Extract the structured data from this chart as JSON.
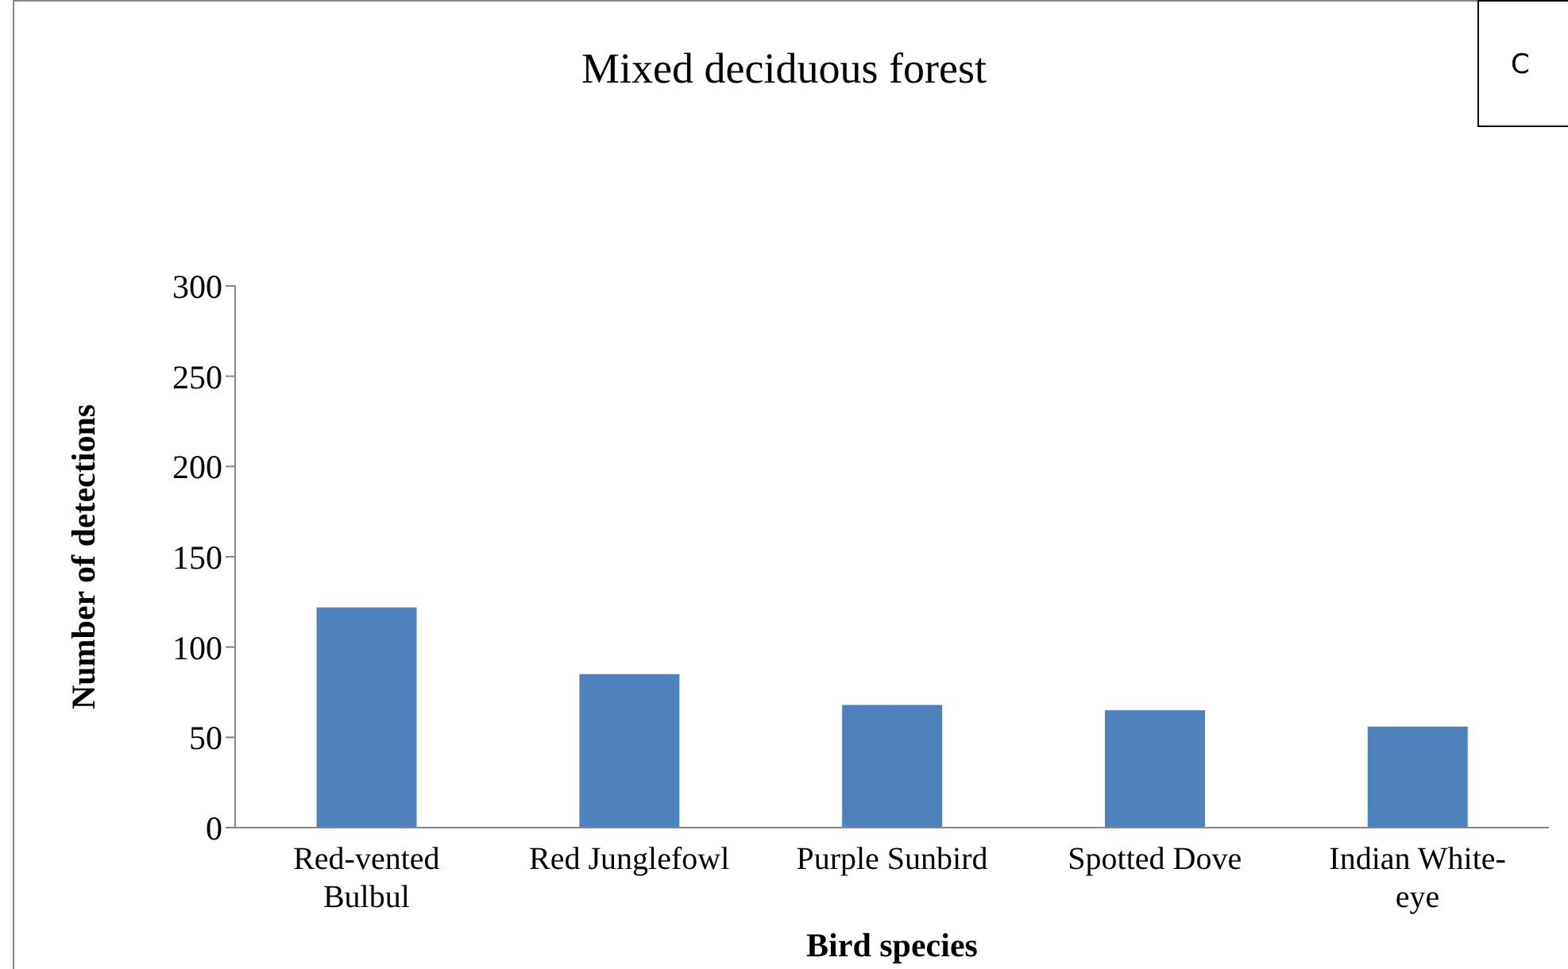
{
  "chart_data": {
    "type": "bar",
    "title": "Mixed deciduous forest",
    "xlabel": "Bird species",
    "ylabel": "Number of detections",
    "annotations": [
      "C"
    ],
    "categories": [
      "Red-vented Bulbul",
      "Red Junglefowl",
      "Purple Sunbird",
      "Spotted Dove",
      "Indian White-eye"
    ],
    "values": [
      122,
      85,
      68,
      65,
      56
    ],
    "color": "#4f81bd",
    "ylim": [
      0,
      300
    ],
    "yticks": [
      0,
      50,
      100,
      150,
      200,
      250,
      300
    ],
    "grid": false
  }
}
